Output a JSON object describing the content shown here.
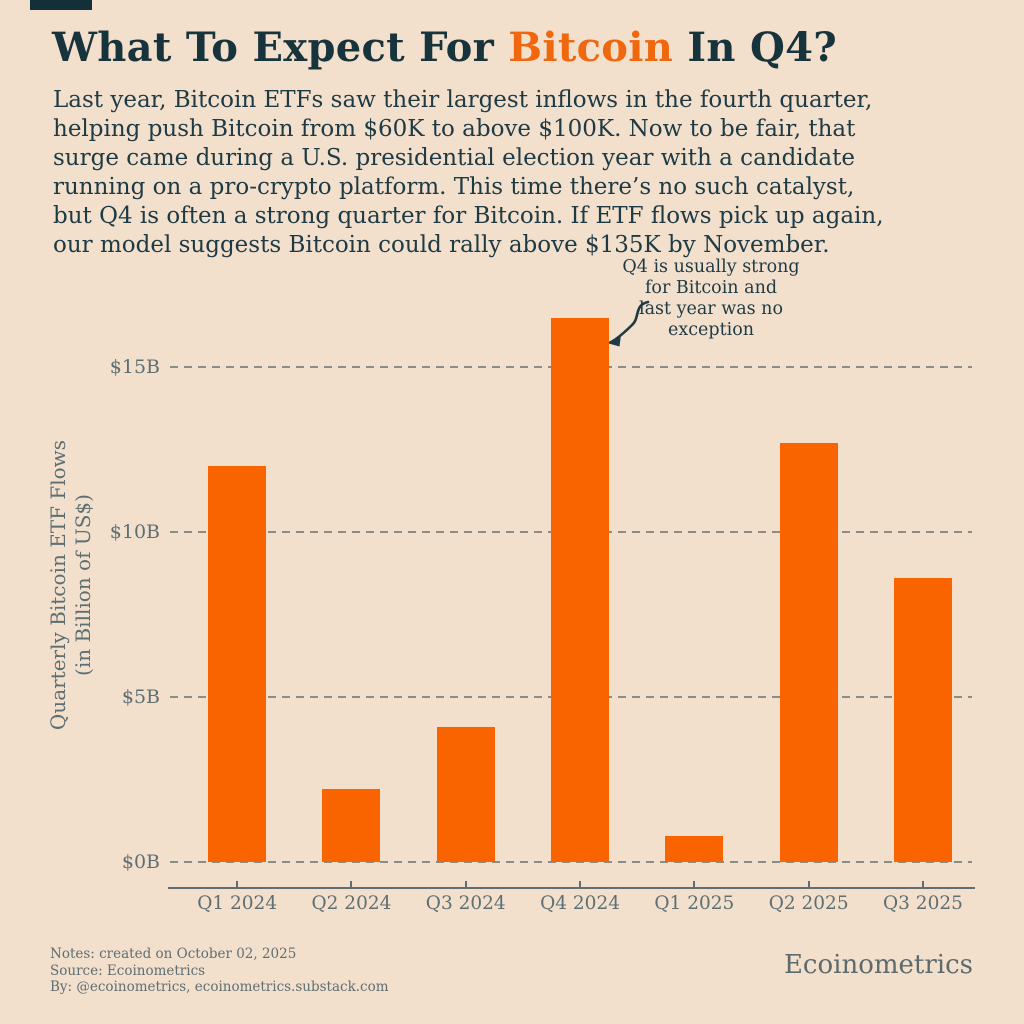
{
  "header": {
    "title_prefix": "What To Expect For ",
    "title_accent": "Bitcoin",
    "title_suffix": " In Q4?"
  },
  "intro": {
    "lines": [
      "Last year, Bitcoin ETFs saw their largest inflows in the fourth quarter,",
      "helping push Bitcoin from $60K to above $100K. Now to be fair, that",
      "surge came during a U.S. presidential election year with a candidate",
      "running on a pro-crypto platform. This time there’s no such catalyst,",
      "but Q4 is often a strong quarter for Bitcoin. If ETF flows pick up again,",
      "our model suggests Bitcoin could rally above $135K by November."
    ]
  },
  "annotation": {
    "lines": [
      "Q4 is usually strong",
      "for Bitcoin and",
      "last year was no",
      "exception"
    ],
    "points_to": "Q4 2024"
  },
  "chart_data": {
    "type": "bar",
    "categories": [
      "Q1 2024",
      "Q2 2024",
      "Q3 2024",
      "Q4 2024",
      "Q1 2025",
      "Q2 2025",
      "Q3 2025"
    ],
    "values": [
      12.0,
      2.2,
      4.1,
      16.5,
      0.8,
      12.7,
      8.6
    ],
    "title": "",
    "xlabel": "",
    "ylabel": "Quarterly Bitcoin ETF Flows\n(in Billion of US$)",
    "yticks": [
      0,
      5,
      10,
      15
    ],
    "ytick_labels": [
      "$0B",
      "$5B",
      "$10B",
      "$15B"
    ],
    "ylim": [
      0,
      17.5
    ],
    "grid": "horizontal-dashed",
    "legend": "none",
    "bar_color": "#FA6400"
  },
  "footer": {
    "lines": [
      "Notes: created on October 02, 2025",
      "Source: Ecoinometrics",
      "By: @ecoinometrics, ecoinometrics.substack.com"
    ],
    "brand": "Ecoinometrics"
  },
  "colors": {
    "background": "#F2DFCC",
    "bar": "#FA6400",
    "accent_text": "#F0670E",
    "title_ink": "#17333C",
    "body_ink": "#1E3A44",
    "muted_ink": "#5E6F73",
    "dash_gray": "#8B8C85",
    "corner_mark": "#13303A"
  }
}
